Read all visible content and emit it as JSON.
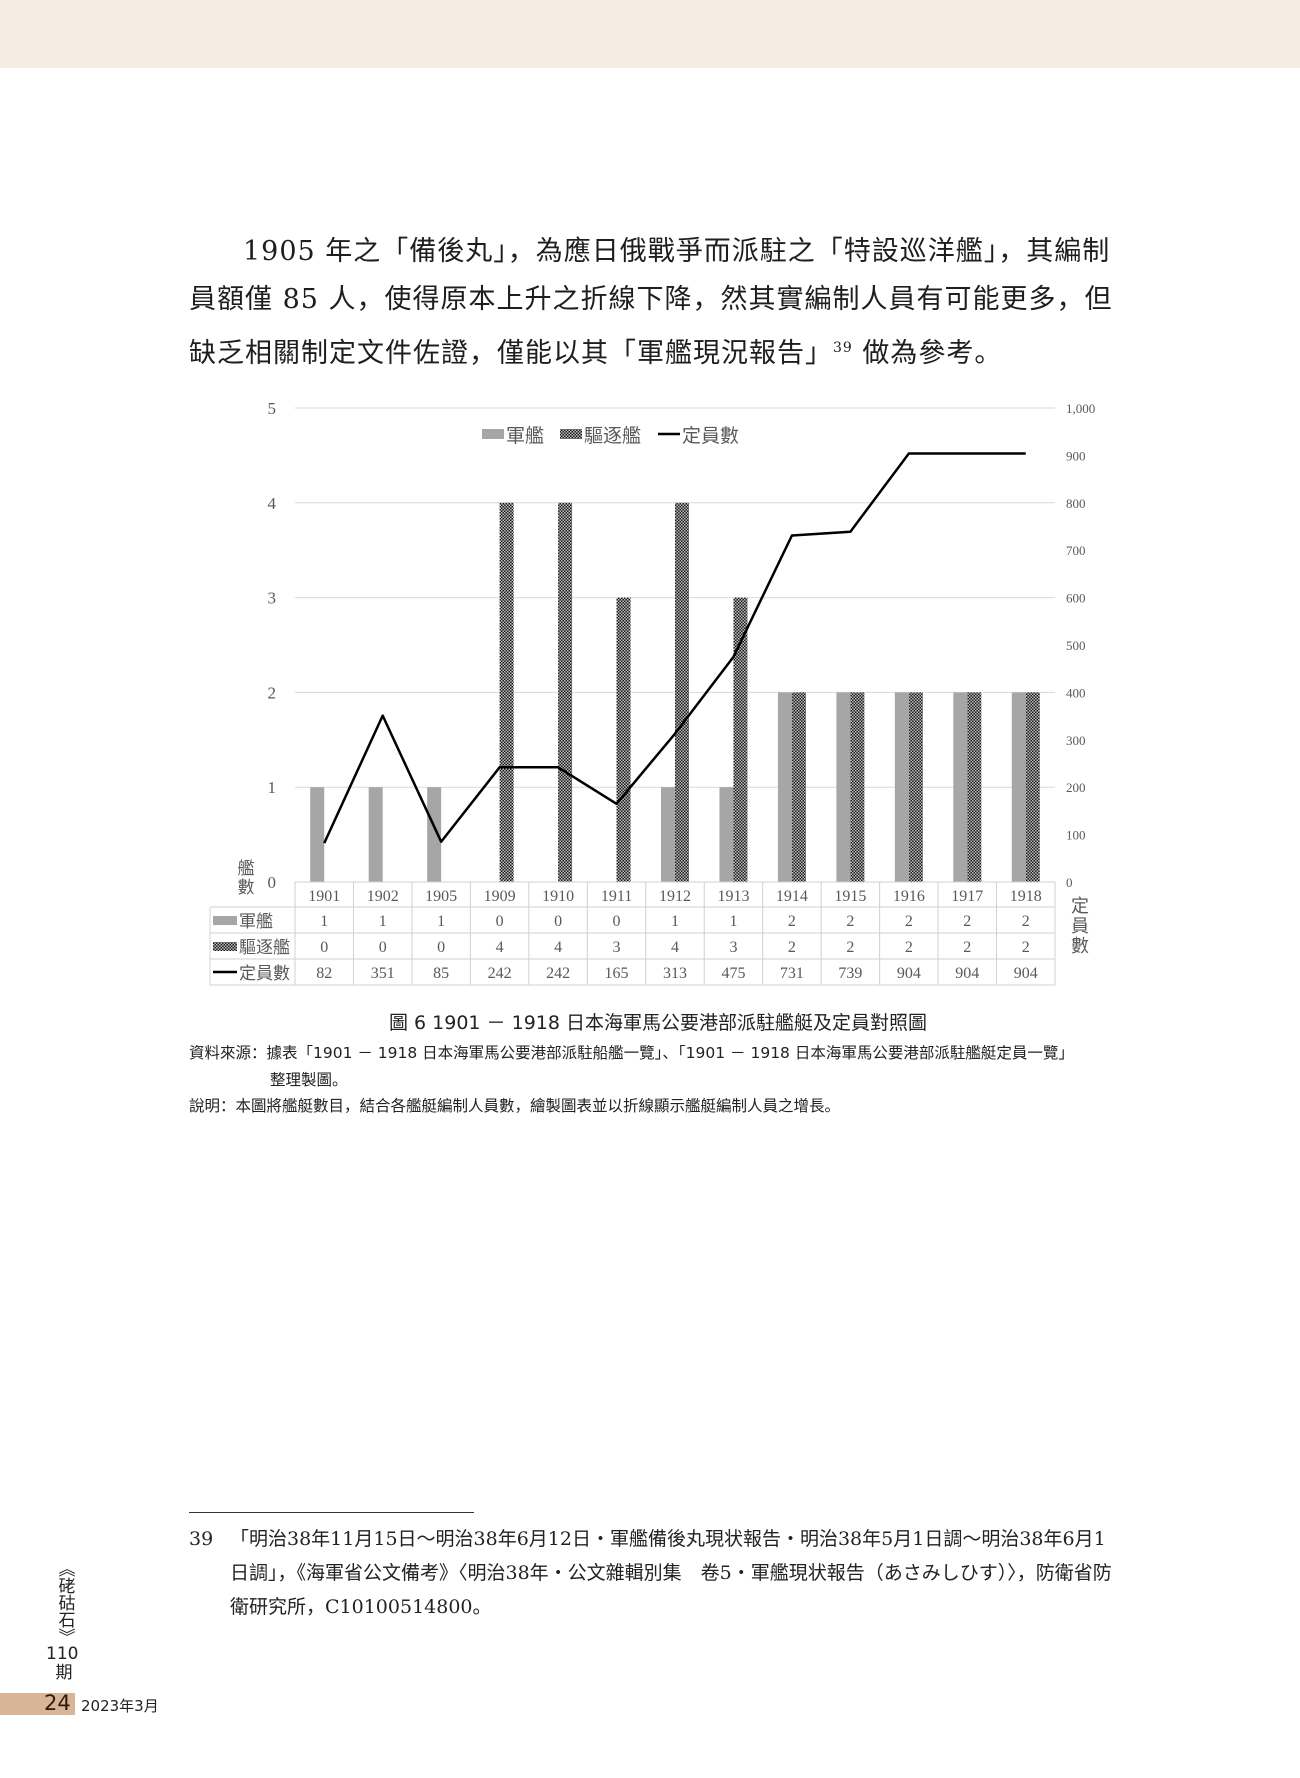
{
  "paragraph": "1905 年之「備後丸」，為應日俄戰爭而派駐之「特設巡洋艦」，其編制員額僅 85 人，使得原本上升之折線下降，然其實編制人員有可能更多，但缺乏相關制定文件佐證，僅能以其「軍艦現況報告」",
  "paragraph_ref": "39",
  "paragraph_end": " 做為參考。",
  "chart_data": {
    "type": "bar+line",
    "categories": [
      "1901",
      "1902",
      "1905",
      "1909",
      "1910",
      "1911",
      "1912",
      "1913",
      "1914",
      "1915",
      "1916",
      "1917",
      "1918"
    ],
    "series": [
      {
        "name": "軍艦",
        "type": "bar",
        "axis": "left",
        "color": "#a6a6a6",
        "values": [
          1,
          1,
          1,
          0,
          0,
          0,
          1,
          1,
          2,
          2,
          2,
          2,
          2
        ]
      },
      {
        "name": "驅逐艦",
        "type": "bar",
        "axis": "left",
        "color": "#2b2b2b",
        "pattern": "checker",
        "values": [
          0,
          0,
          0,
          4,
          4,
          3,
          4,
          3,
          2,
          2,
          2,
          2,
          2
        ]
      },
      {
        "name": "定員數",
        "type": "line",
        "axis": "right",
        "color": "#000000",
        "values": [
          82,
          351,
          85,
          242,
          242,
          165,
          313,
          475,
          731,
          739,
          904,
          904,
          904
        ]
      }
    ],
    "ylabel_left": "艦數",
    "ylabel_right": "定員數",
    "ylim_left": [
      0,
      5
    ],
    "ylim_right": [
      0,
      1000
    ],
    "left_ticks": [
      "0",
      "1",
      "2",
      "3",
      "4",
      "5"
    ],
    "right_ticks": [
      "0",
      "100",
      "200",
      "300",
      "400",
      "500",
      "600",
      "700",
      "800",
      "900",
      "1,000"
    ],
    "grid": true,
    "legend": "top",
    "data_table": true
  },
  "caption": "圖 6 1901 － 1918 日本海軍馬公要港部派駐艦艇及定員對照圖",
  "source_line1": "資料來源：據表「1901 － 1918 日本海軍馬公要港部派駐船艦一覽」、「1901 － 1918 日本海軍馬公要港部派駐艦艇定員一覽」",
  "source_line2": "整理製圖。",
  "explanation": "說明：本圖將艦艇數目，結合各艦艇編制人員數，繪製圖表並以折線顯示艦艇編制人員之增長。",
  "footnote": {
    "number": "39",
    "text": "「明治38年11月15日～明治38年6月12日・軍艦備後丸現状報告・明治38年5月1日調～明治38年6月1日調」，《海軍省公文備考》〈明治38年・公文雜輯別集　卷5・軍艦現状報告（あさみしひす）〉，防衛省防衛研究所，C10100514800。"
  },
  "sidebar": {
    "journal": "《硓𥑮石》",
    "issue": "110",
    "issue_unit": "期"
  },
  "footer": {
    "page": "24",
    "date": "2023年3月"
  }
}
